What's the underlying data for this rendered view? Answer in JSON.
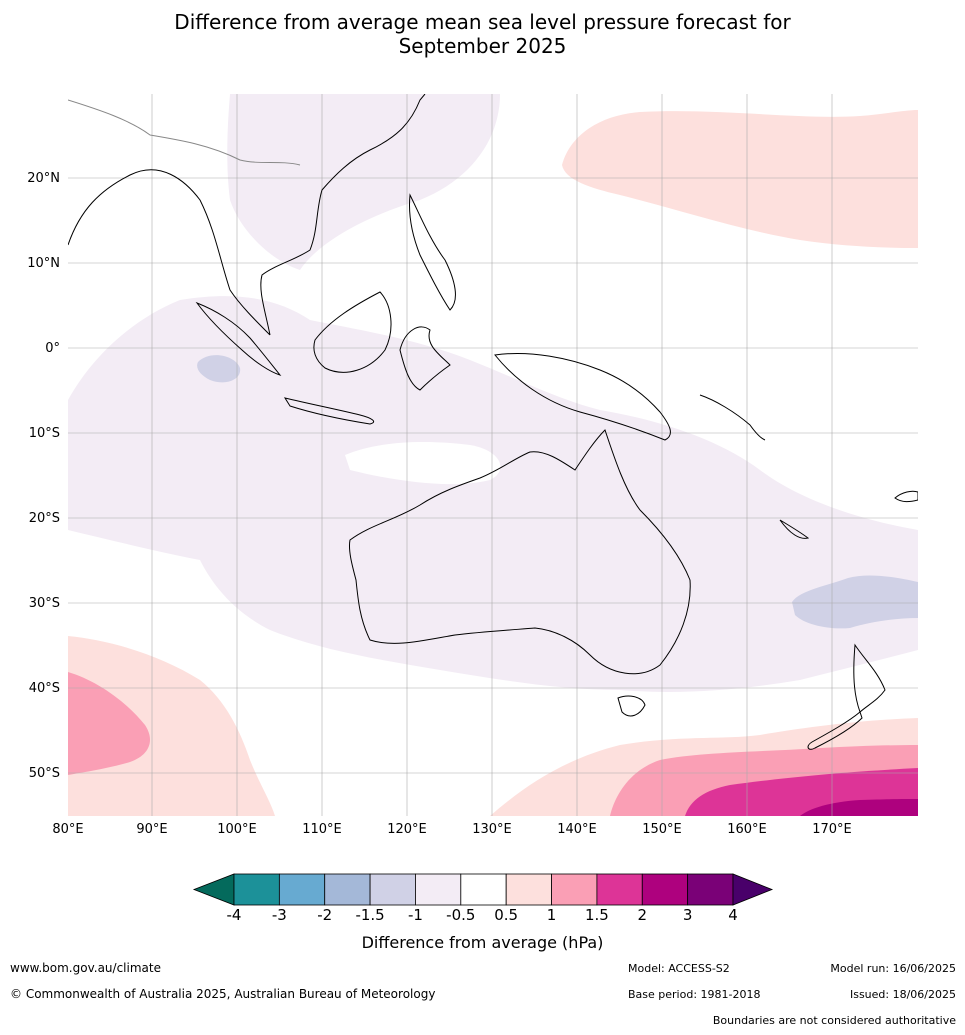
{
  "title_line1": "Difference from average mean sea level pressure forecast for",
  "title_line2": "September 2025",
  "lat_labels": [
    "20°N",
    "10°N",
    "0°",
    "10°S",
    "20°S",
    "30°S",
    "40°S",
    "50°S"
  ],
  "lon_labels": [
    "80°E",
    "90°E",
    "100°E",
    "110°E",
    "120°E",
    "130°E",
    "140°E",
    "150°E",
    "160°E",
    "170°E"
  ],
  "colorbar": {
    "title": "Difference from average (hPa)",
    "ticks": [
      "-4",
      "-3",
      "-2",
      "-1.5",
      "-1",
      "-0.5",
      "0.5",
      "1",
      "1.5",
      "2",
      "3",
      "4"
    ],
    "colors": [
      "#046a5c",
      "#1c9199",
      "#67aad1",
      "#a4b8d8",
      "#d0d1e6",
      "#f3ecf5",
      "#ffffff",
      "#fde0dd",
      "#fa9fb5",
      "#dd3497",
      "#ae017e",
      "#7a0177",
      "#49006a"
    ]
  },
  "footer": {
    "website": "www.bom.gov.au/climate",
    "copyright": "© Commonwealth of Australia 2025, Australian Bureau of Meteorology",
    "model": "Model: ACCESS-S2",
    "base_period": "Base period: 1981-2018",
    "model_run": "Model run: 16/06/2025",
    "issued": "Issued: 18/06/2025",
    "disclaimer": "Boundaries are not considered authoritative"
  }
}
